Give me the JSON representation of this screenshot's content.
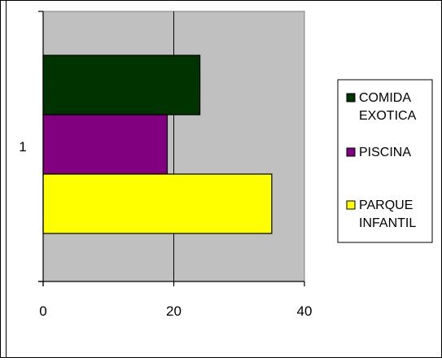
{
  "chart_data": {
    "type": "bar",
    "orientation": "horizontal",
    "title": "",
    "xlabel": "",
    "ylabel": "",
    "categories": [
      "1"
    ],
    "series": [
      {
        "name": "COMIDA EXOTICA",
        "values": [
          24
        ],
        "color": "#003300"
      },
      {
        "name": "PISCINA",
        "values": [
          19
        ],
        "color": "#800080"
      },
      {
        "name": "PARQUE INFANTIL",
        "values": [
          35
        ],
        "color": "#ffff00"
      }
    ],
    "xlim": [
      0,
      40
    ],
    "x_ticks": [
      "0",
      "20",
      "40"
    ],
    "grid": "vertical",
    "plot_background": "#c0c0c0",
    "legend_position": "right",
    "legend_entries": [
      {
        "lines": [
          "COMIDA",
          "EXOTICA"
        ],
        "color": "#003300"
      },
      {
        "lines": [
          "PISCINA"
        ],
        "color": "#800080"
      },
      {
        "lines": [
          "PARQUE",
          "INFANTIL"
        ],
        "color": "#ffff00"
      }
    ]
  }
}
